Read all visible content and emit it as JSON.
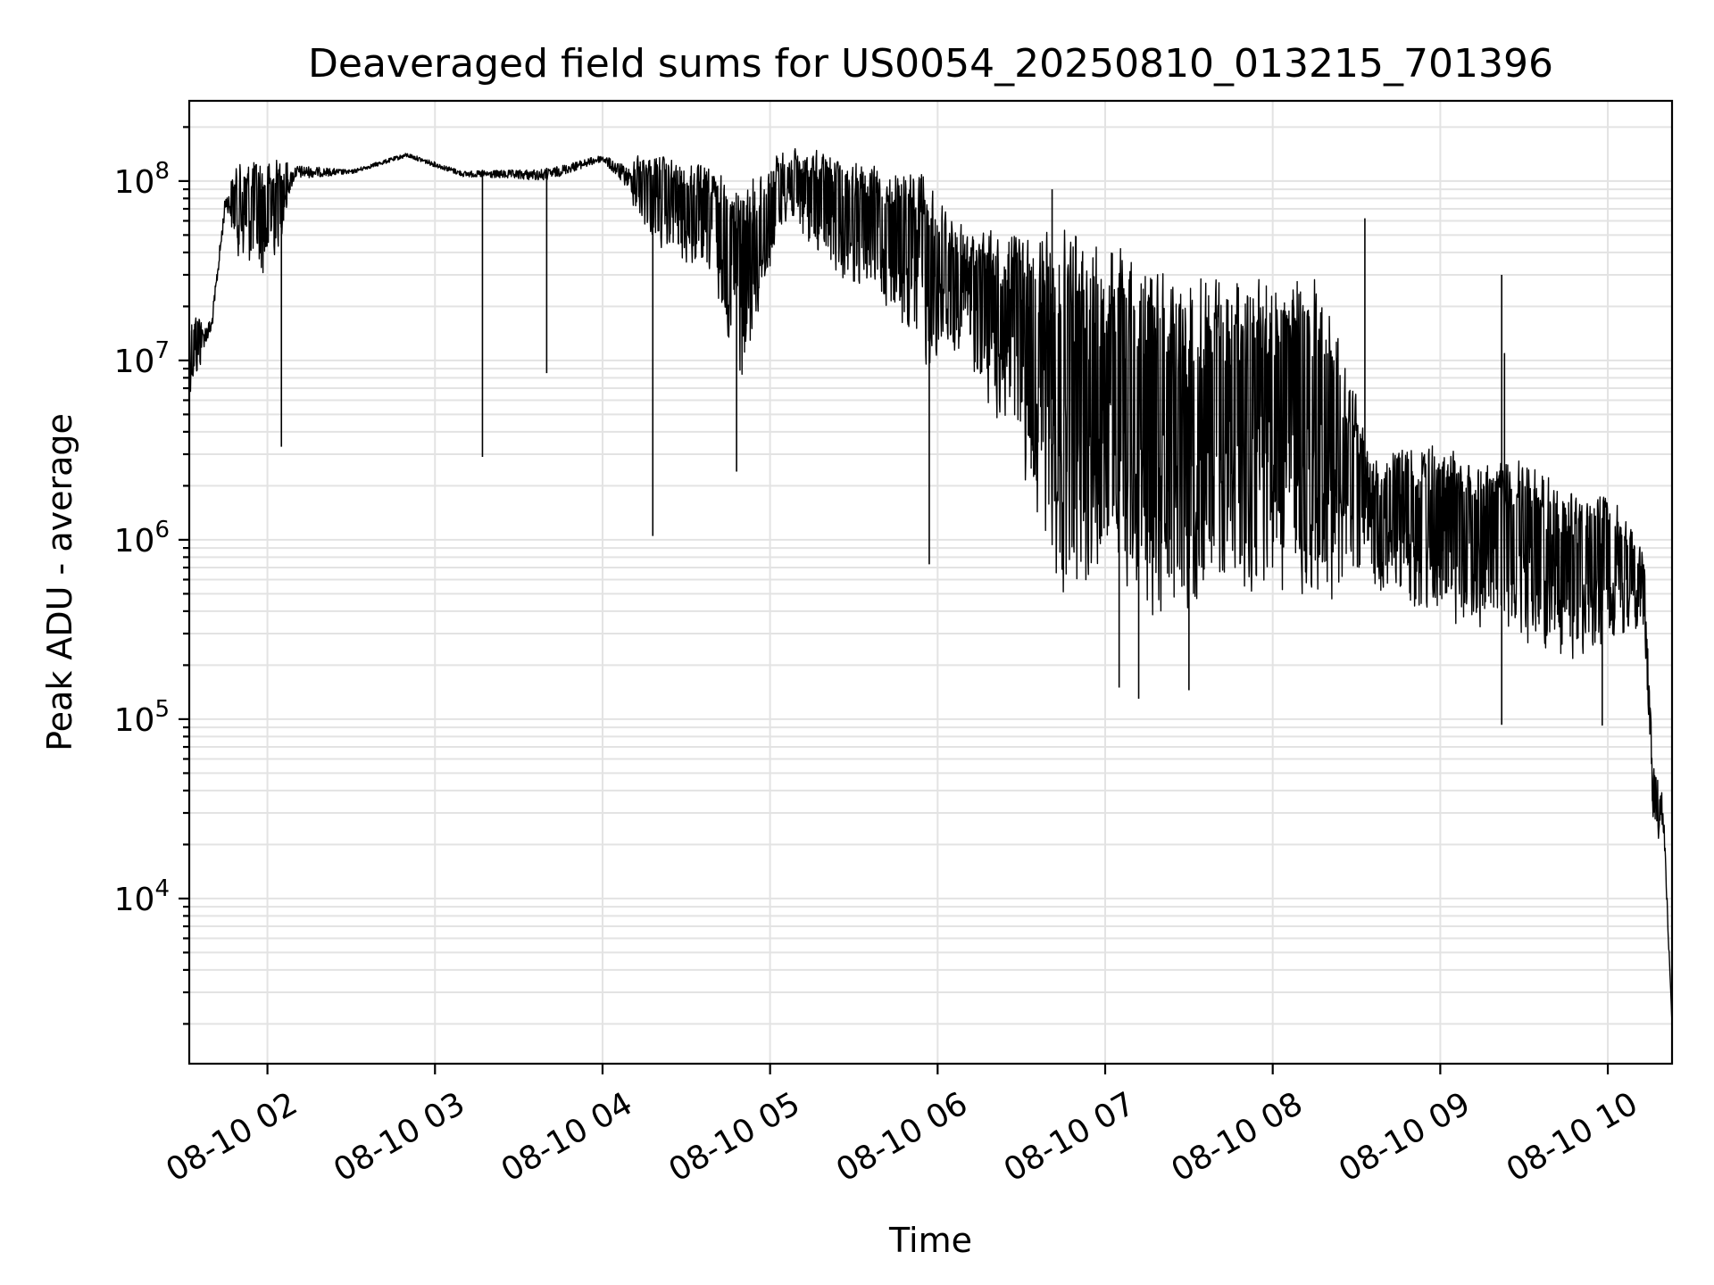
{
  "chart_data": {
    "type": "line",
    "title": "Deaveraged field sums for US0054_20250810_013215_701396",
    "xlabel": "Time",
    "ylabel": "Peak ADU - average",
    "yscale": "log",
    "grid": true,
    "grid_minor": true,
    "xlim": [
      "2025-08-10 01:32",
      "2025-08-10 10:23"
    ],
    "ylim": [
      1200,
      280000000
    ],
    "x_ticks": [
      "08-10 02",
      "08-10 03",
      "08-10 04",
      "08-10 05",
      "08-10 06",
      "08-10 07",
      "08-10 08",
      "08-10 09",
      "08-10 10"
    ],
    "x_tick_rotation": 30,
    "y_ticks": [
      {
        "base": "10",
        "exp": "4",
        "value": 10000
      },
      {
        "base": "10",
        "exp": "5",
        "value": 100000
      },
      {
        "base": "10",
        "exp": "6",
        "value": 1000000
      },
      {
        "base": "10",
        "exp": "7",
        "value": 10000000
      },
      {
        "base": "10",
        "exp": "8",
        "value": 100000000
      }
    ],
    "series": [
      {
        "color": "#000000",
        "envelope": [
          {
            "t": "2025-08-10 01:32",
            "hi": 19000000,
            "lo": 6000000
          },
          {
            "t": "2025-08-10 01:40",
            "hi": 20000000,
            "lo": 12000000
          },
          {
            "t": "2025-08-10 01:45",
            "hi": 100000000,
            "lo": 60000000
          },
          {
            "t": "2025-08-10 01:50",
            "hi": 130000000,
            "lo": 35000000
          },
          {
            "t": "2025-08-10 02:00",
            "hi": 140000000,
            "lo": 25000000
          },
          {
            "t": "2025-08-10 02:10",
            "hi": 140000000,
            "lo": 90000000
          },
          {
            "t": "2025-08-10 02:30",
            "hi": 120000000,
            "lo": 105000000
          },
          {
            "t": "2025-08-10 02:50",
            "hi": 150000000,
            "lo": 130000000
          },
          {
            "t": "2025-08-10 03:10",
            "hi": 120000000,
            "lo": 100000000
          },
          {
            "t": "2025-08-10 03:40",
            "hi": 130000000,
            "lo": 90000000
          },
          {
            "t": "2025-08-10 04:00",
            "hi": 150000000,
            "lo": 120000000
          },
          {
            "t": "2025-08-10 04:20",
            "hi": 145000000,
            "lo": 40000000
          },
          {
            "t": "2025-08-10 04:40",
            "hi": 120000000,
            "lo": 25000000
          },
          {
            "t": "2025-08-10 04:50",
            "hi": 100000000,
            "lo": 6000000
          },
          {
            "t": "2025-08-10 05:05",
            "hi": 155000000,
            "lo": 60000000
          },
          {
            "t": "2025-08-10 05:20",
            "hi": 150000000,
            "lo": 30000000
          },
          {
            "t": "2025-08-10 05:40",
            "hi": 120000000,
            "lo": 20000000
          },
          {
            "t": "2025-08-10 05:55",
            "hi": 120000000,
            "lo": 8000000
          },
          {
            "t": "2025-08-10 06:10",
            "hi": 55000000,
            "lo": 10000000
          },
          {
            "t": "2025-08-10 06:30",
            "hi": 60000000,
            "lo": 2000000
          },
          {
            "t": "2025-08-10 06:45",
            "hi": 60000000,
            "lo": 400000
          },
          {
            "t": "2025-08-10 07:00",
            "hi": 50000000,
            "lo": 500000
          },
          {
            "t": "2025-08-10 07:20",
            "hi": 40000000,
            "lo": 300000
          },
          {
            "t": "2025-08-10 07:40",
            "hi": 35000000,
            "lo": 400000
          },
          {
            "t": "2025-08-10 08:00",
            "hi": 40000000,
            "lo": 450000
          },
          {
            "t": "2025-08-10 08:20",
            "hi": 30000000,
            "lo": 400000
          },
          {
            "t": "2025-08-10 08:35",
            "hi": 3000000,
            "lo": 500000
          },
          {
            "t": "2025-08-10 08:50",
            "hi": 4000000,
            "lo": 350000
          },
          {
            "t": "2025-08-10 09:10",
            "hi": 3000000,
            "lo": 300000
          },
          {
            "t": "2025-08-10 09:30",
            "hi": 3000000,
            "lo": 250000
          },
          {
            "t": "2025-08-10 09:45",
            "hi": 2000000,
            "lo": 180000
          },
          {
            "t": "2025-08-10 10:00",
            "hi": 2000000,
            "lo": 250000
          },
          {
            "t": "2025-08-10 10:13",
            "hi": 900000,
            "lo": 300000
          },
          {
            "t": "2025-08-10 10:16",
            "hi": 60000,
            "lo": 25000
          },
          {
            "t": "2025-08-10 10:20",
            "hi": 40000,
            "lo": 18000
          },
          {
            "t": "2025-08-10 10:23",
            "hi": 2000,
            "lo": 2000
          }
        ],
        "spikes_down": [
          {
            "t": "2025-08-10 02:05",
            "y": 3300000
          },
          {
            "t": "2025-08-10 03:17",
            "y": 2900000
          },
          {
            "t": "2025-08-10 03:40",
            "y": 8500000
          },
          {
            "t": "2025-08-10 04:18",
            "y": 1050000
          },
          {
            "t": "2025-08-10 04:48",
            "y": 2400000
          },
          {
            "t": "2025-08-10 05:57",
            "y": 730000
          },
          {
            "t": "2025-08-10 07:05",
            "y": 150000
          },
          {
            "t": "2025-08-10 07:12",
            "y": 130000
          },
          {
            "t": "2025-08-10 07:30",
            "y": 145000
          },
          {
            "t": "2025-08-10 09:22",
            "y": 93000
          },
          {
            "t": "2025-08-10 09:58",
            "y": 92000
          }
        ],
        "spikes_up": [
          {
            "t": "2025-08-10 06:41",
            "y": 90000000
          },
          {
            "t": "2025-08-10 08:33",
            "y": 62000000
          },
          {
            "t": "2025-08-10 09:22",
            "y": 30000000
          },
          {
            "t": "2025-08-10 09:23",
            "y": 11000000
          }
        ]
      }
    ]
  }
}
